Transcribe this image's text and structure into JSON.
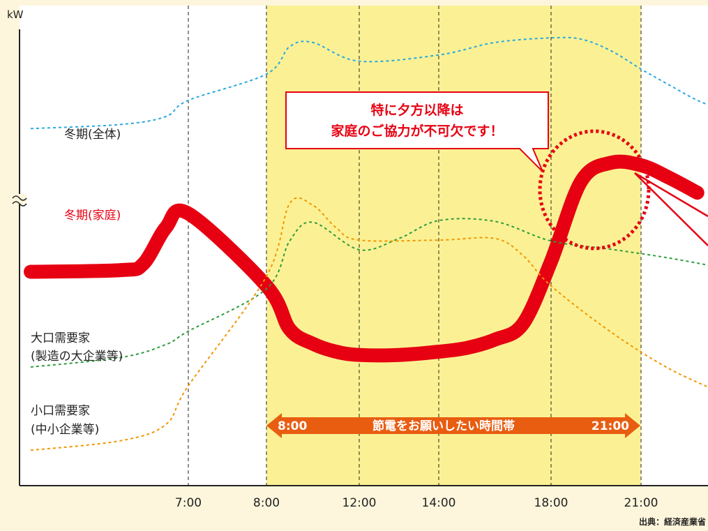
{
  "chart_data": {
    "type": "line",
    "ylabel": "kW",
    "x_ticks": [
      "7:00",
      "8:00",
      "12:00",
      "14:00",
      "18:00",
      "21:00"
    ],
    "series": [
      {
        "name": "冬期(全体)",
        "style": "dotted",
        "color": "#29a8e0",
        "x": [
          0,
          4,
          6,
          7,
          8,
          9,
          10,
          12,
          14,
          16,
          18,
          19,
          20,
          21,
          22,
          23,
          24
        ],
        "y": [
          75.8,
          76.8,
          78.7,
          82.6,
          88.9,
          95.5,
          96.5,
          92.0,
          93.5,
          96.5,
          97.6,
          97.3,
          94.5,
          90.1,
          86.3,
          82.6,
          80.0
        ]
      },
      {
        "name": "冬期(家庭)",
        "style": "thick",
        "color": "#e60012",
        "x": [
          0,
          4,
          5,
          6,
          7,
          8,
          9,
          10,
          11,
          12,
          13,
          14,
          15,
          16,
          17,
          18,
          19,
          20,
          21,
          22,
          23
        ],
        "y": [
          41.4,
          41.8,
          43.3,
          52.0,
          55.4,
          38.0,
          27.6,
          24.1,
          22.2,
          21.4,
          21.4,
          22.2,
          23.1,
          25.1,
          28.9,
          43.9,
          63.1,
          67.6,
          67.0,
          64.0,
          60.4
        ]
      },
      {
        "name": "大口需要家(製造の大企業等)",
        "style": "dotted",
        "color": "#2e9b3c",
        "x": [
          0,
          4,
          6,
          7,
          8,
          9,
          10,
          12,
          13,
          14,
          16,
          18,
          20,
          22,
          24
        ],
        "y": [
          18.5,
          20.8,
          23.9,
          27.1,
          37.3,
          48.8,
          53.3,
          46.7,
          49.4,
          53.7,
          53.5,
          48.8,
          46.8,
          44.7,
          42.2
        ]
      },
      {
        "name": "小口需要家(中小企業等)",
        "style": "dotted",
        "color": "#f29600",
        "x": [
          0,
          4,
          6,
          7,
          8,
          9,
          10,
          11,
          12,
          14,
          16,
          17,
          18,
          20,
          22,
          24
        ],
        "y": [
          -1.5,
          0.8,
          4.7,
          14.0,
          40.3,
          57.8,
          57.4,
          52.0,
          49.0,
          49.0,
          49.4,
          45.3,
          38.0,
          26.9,
          18.1,
          11.9
        ]
      }
    ],
    "labels": {
      "overall": "冬期(全体)",
      "home": "冬期(家庭)",
      "large_line1": "大口需要家",
      "large_line2": "(製造の大企業等)",
      "small_line1": "小口需要家",
      "small_line2": "(中小企業等)"
    },
    "highlight": {
      "from": "8:00",
      "to": "21:00",
      "text": "節電をお願いしたい時間帯",
      "color": "#fbf194"
    },
    "callout": {
      "line1": "特に夕方以降は",
      "line2": "家庭のご協力が不可欠です！"
    },
    "source": "出典：経済産業省"
  }
}
